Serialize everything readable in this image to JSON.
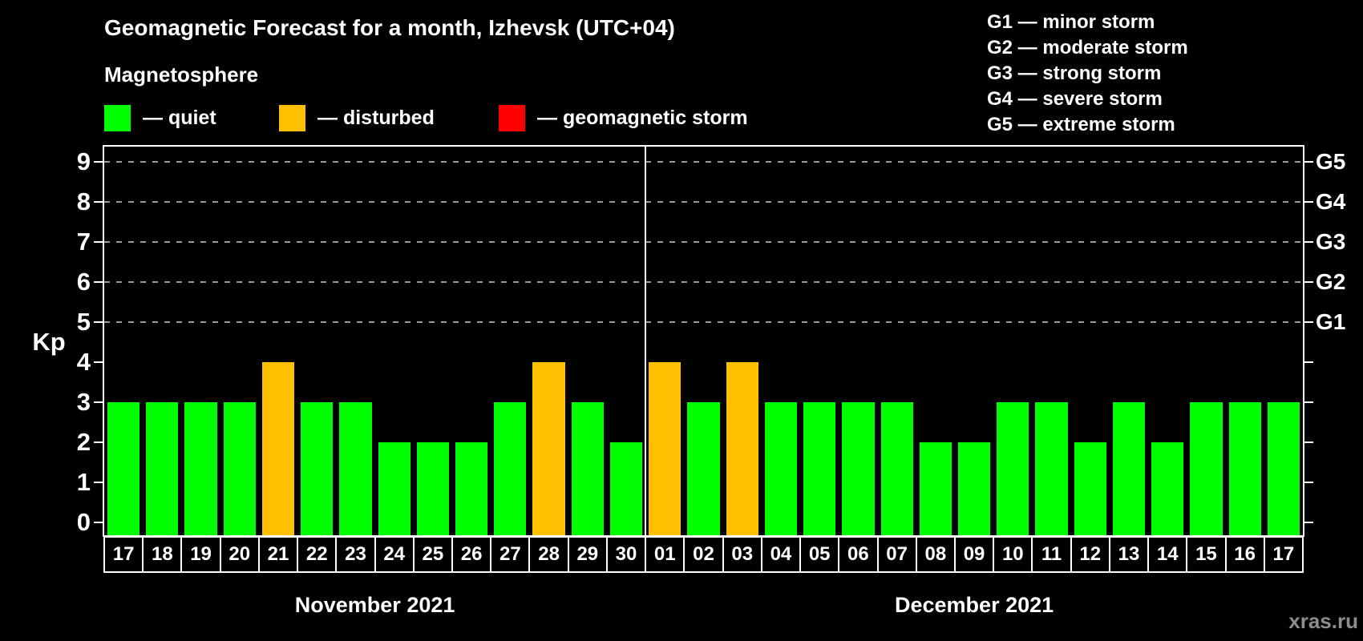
{
  "header": {
    "title": "Geomagnetic Forecast for a month, Izhevsk (UTC+04)",
    "subtitle": "Magnetosphere"
  },
  "legend": {
    "items": [
      {
        "name": "quiet",
        "label": "— quiet",
        "color": "#00ff00"
      },
      {
        "name": "disturbed",
        "label": "— disturbed",
        "color": "#ffc000"
      },
      {
        "name": "storm",
        "label": "— geomagnetic storm",
        "color": "#ff0000"
      }
    ]
  },
  "g_scale_legend": {
    "items": [
      "G1 — minor storm",
      "G2 — moderate storm",
      "G3 — strong storm",
      "G4 — severe storm",
      "G5 — extreme storm"
    ]
  },
  "axes": {
    "y_label": "Kp",
    "y_ticks": [
      0,
      1,
      2,
      3,
      4,
      5,
      6,
      7,
      8,
      9
    ],
    "right_labels": [
      {
        "label": "G1",
        "kp": 5
      },
      {
        "label": "G2",
        "kp": 6
      },
      {
        "label": "G3",
        "kp": 7
      },
      {
        "label": "G4",
        "kp": 8
      },
      {
        "label": "G5",
        "kp": 9
      }
    ]
  },
  "months": [
    {
      "label": "November 2021",
      "days": 14
    },
    {
      "label": "December 2021",
      "days": 17
    }
  ],
  "watermark": "xras.ru",
  "chart_data": {
    "type": "bar",
    "title": "Geomagnetic Forecast for a month, Izhevsk (UTC+04)",
    "ylabel": "Kp",
    "ylim": [
      0,
      9.7
    ],
    "grid": "dashed horizontal at Kp 5-9 (G1-G5 levels)",
    "legend_position": "top",
    "categories": [
      "17",
      "18",
      "19",
      "20",
      "21",
      "22",
      "23",
      "24",
      "25",
      "26",
      "27",
      "28",
      "29",
      "30",
      "01",
      "02",
      "03",
      "04",
      "05",
      "06",
      "07",
      "08",
      "09",
      "10",
      "11",
      "12",
      "13",
      "14",
      "15",
      "16",
      "17"
    ],
    "values": [
      3,
      3,
      3,
      3,
      4,
      3,
      3,
      2,
      2,
      2,
      3,
      4,
      3,
      2,
      4,
      3,
      4,
      3,
      3,
      3,
      3,
      2,
      2,
      3,
      3,
      2,
      3,
      2,
      3,
      3,
      3
    ],
    "statuses": [
      "quiet",
      "quiet",
      "quiet",
      "quiet",
      "disturbed",
      "quiet",
      "quiet",
      "quiet",
      "quiet",
      "quiet",
      "quiet",
      "disturbed",
      "quiet",
      "quiet",
      "disturbed",
      "quiet",
      "disturbed",
      "quiet",
      "quiet",
      "quiet",
      "quiet",
      "quiet",
      "quiet",
      "quiet",
      "quiet",
      "quiet",
      "quiet",
      "quiet",
      "quiet",
      "quiet",
      "quiet"
    ],
    "colors": {
      "quiet": "#00ff00",
      "disturbed": "#ffc000",
      "storm": "#ff0000"
    },
    "gridlines_at": [
      5,
      6,
      7,
      8,
      9
    ]
  }
}
